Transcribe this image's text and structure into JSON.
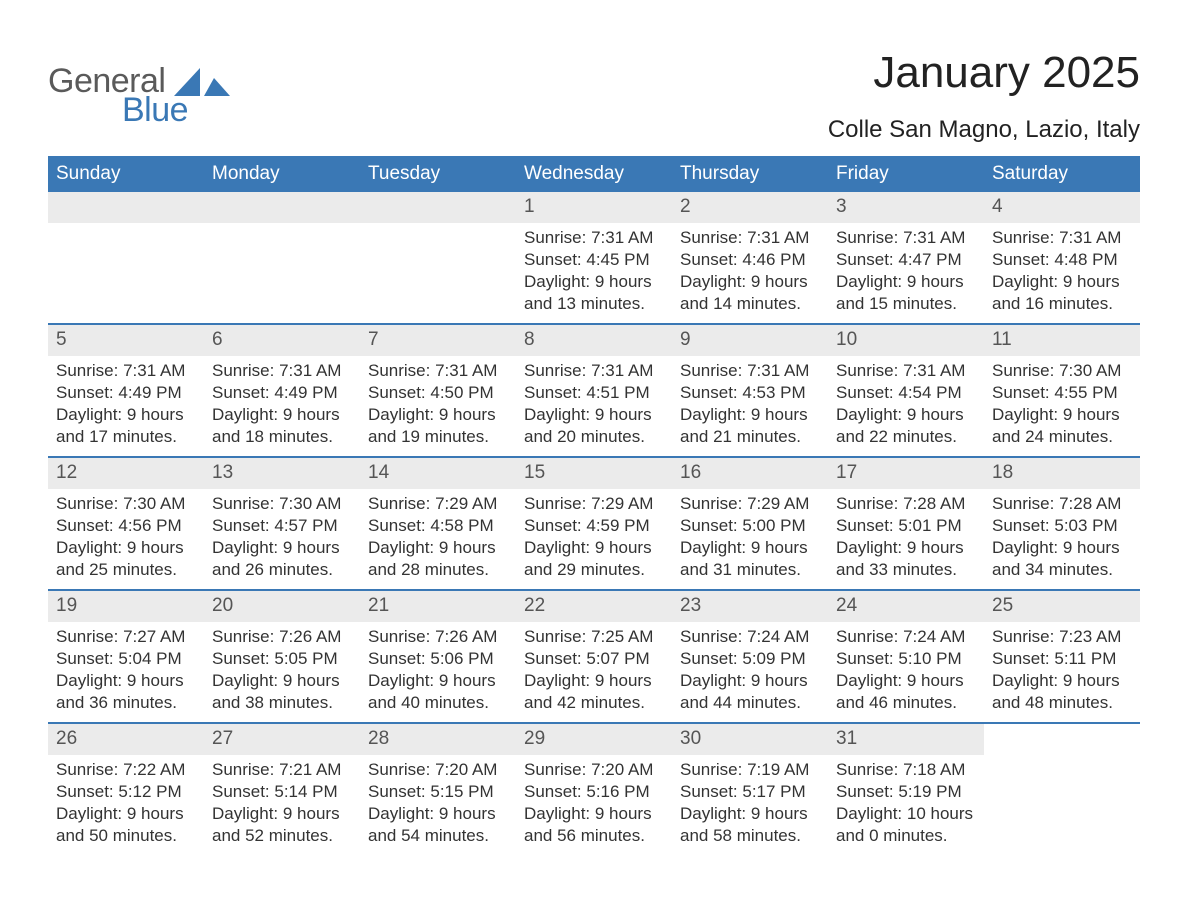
{
  "logo": {
    "text_main": "General",
    "text_sub": "Blue"
  },
  "title": "January 2025",
  "location": "Colle San Magno, Lazio, Italy",
  "colors": {
    "brand_blue": "#3a78b5",
    "header_text": "#ffffff",
    "daynum_bg": "#ebebeb",
    "body_text": "#333333",
    "logo_gray": "#5a5a5a"
  },
  "weekdays": [
    "Sunday",
    "Monday",
    "Tuesday",
    "Wednesday",
    "Thursday",
    "Friday",
    "Saturday"
  ],
  "weeks": [
    [
      null,
      null,
      null,
      {
        "n": "1",
        "sunrise": "7:31 AM",
        "sunset": "4:45 PM",
        "dl1": "9 hours",
        "dl2": "and 13 minutes."
      },
      {
        "n": "2",
        "sunrise": "7:31 AM",
        "sunset": "4:46 PM",
        "dl1": "9 hours",
        "dl2": "and 14 minutes."
      },
      {
        "n": "3",
        "sunrise": "7:31 AM",
        "sunset": "4:47 PM",
        "dl1": "9 hours",
        "dl2": "and 15 minutes."
      },
      {
        "n": "4",
        "sunrise": "7:31 AM",
        "sunset": "4:48 PM",
        "dl1": "9 hours",
        "dl2": "and 16 minutes."
      }
    ],
    [
      {
        "n": "5",
        "sunrise": "7:31 AM",
        "sunset": "4:49 PM",
        "dl1": "9 hours",
        "dl2": "and 17 minutes."
      },
      {
        "n": "6",
        "sunrise": "7:31 AM",
        "sunset": "4:49 PM",
        "dl1": "9 hours",
        "dl2": "and 18 minutes."
      },
      {
        "n": "7",
        "sunrise": "7:31 AM",
        "sunset": "4:50 PM",
        "dl1": "9 hours",
        "dl2": "and 19 minutes."
      },
      {
        "n": "8",
        "sunrise": "7:31 AM",
        "sunset": "4:51 PM",
        "dl1": "9 hours",
        "dl2": "and 20 minutes."
      },
      {
        "n": "9",
        "sunrise": "7:31 AM",
        "sunset": "4:53 PM",
        "dl1": "9 hours",
        "dl2": "and 21 minutes."
      },
      {
        "n": "10",
        "sunrise": "7:31 AM",
        "sunset": "4:54 PM",
        "dl1": "9 hours",
        "dl2": "and 22 minutes."
      },
      {
        "n": "11",
        "sunrise": "7:30 AM",
        "sunset": "4:55 PM",
        "dl1": "9 hours",
        "dl2": "and 24 minutes."
      }
    ],
    [
      {
        "n": "12",
        "sunrise": "7:30 AM",
        "sunset": "4:56 PM",
        "dl1": "9 hours",
        "dl2": "and 25 minutes."
      },
      {
        "n": "13",
        "sunrise": "7:30 AM",
        "sunset": "4:57 PM",
        "dl1": "9 hours",
        "dl2": "and 26 minutes."
      },
      {
        "n": "14",
        "sunrise": "7:29 AM",
        "sunset": "4:58 PM",
        "dl1": "9 hours",
        "dl2": "and 28 minutes."
      },
      {
        "n": "15",
        "sunrise": "7:29 AM",
        "sunset": "4:59 PM",
        "dl1": "9 hours",
        "dl2": "and 29 minutes."
      },
      {
        "n": "16",
        "sunrise": "7:29 AM",
        "sunset": "5:00 PM",
        "dl1": "9 hours",
        "dl2": "and 31 minutes."
      },
      {
        "n": "17",
        "sunrise": "7:28 AM",
        "sunset": "5:01 PM",
        "dl1": "9 hours",
        "dl2": "and 33 minutes."
      },
      {
        "n": "18",
        "sunrise": "7:28 AM",
        "sunset": "5:03 PM",
        "dl1": "9 hours",
        "dl2": "and 34 minutes."
      }
    ],
    [
      {
        "n": "19",
        "sunrise": "7:27 AM",
        "sunset": "5:04 PM",
        "dl1": "9 hours",
        "dl2": "and 36 minutes."
      },
      {
        "n": "20",
        "sunrise": "7:26 AM",
        "sunset": "5:05 PM",
        "dl1": "9 hours",
        "dl2": "and 38 minutes."
      },
      {
        "n": "21",
        "sunrise": "7:26 AM",
        "sunset": "5:06 PM",
        "dl1": "9 hours",
        "dl2": "and 40 minutes."
      },
      {
        "n": "22",
        "sunrise": "7:25 AM",
        "sunset": "5:07 PM",
        "dl1": "9 hours",
        "dl2": "and 42 minutes."
      },
      {
        "n": "23",
        "sunrise": "7:24 AM",
        "sunset": "5:09 PM",
        "dl1": "9 hours",
        "dl2": "and 44 minutes."
      },
      {
        "n": "24",
        "sunrise": "7:24 AM",
        "sunset": "5:10 PM",
        "dl1": "9 hours",
        "dl2": "and 46 minutes."
      },
      {
        "n": "25",
        "sunrise": "7:23 AM",
        "sunset": "5:11 PM",
        "dl1": "9 hours",
        "dl2": "and 48 minutes."
      }
    ],
    [
      {
        "n": "26",
        "sunrise": "7:22 AM",
        "sunset": "5:12 PM",
        "dl1": "9 hours",
        "dl2": "and 50 minutes."
      },
      {
        "n": "27",
        "sunrise": "7:21 AM",
        "sunset": "5:14 PM",
        "dl1": "9 hours",
        "dl2": "and 52 minutes."
      },
      {
        "n": "28",
        "sunrise": "7:20 AM",
        "sunset": "5:15 PM",
        "dl1": "9 hours",
        "dl2": "and 54 minutes."
      },
      {
        "n": "29",
        "sunrise": "7:20 AM",
        "sunset": "5:16 PM",
        "dl1": "9 hours",
        "dl2": "and 56 minutes."
      },
      {
        "n": "30",
        "sunrise": "7:19 AM",
        "sunset": "5:17 PM",
        "dl1": "9 hours",
        "dl2": "and 58 minutes."
      },
      {
        "n": "31",
        "sunrise": "7:18 AM",
        "sunset": "5:19 PM",
        "dl1": "10 hours",
        "dl2": "and 0 minutes."
      },
      null
    ]
  ],
  "labels": {
    "sunrise": "Sunrise: ",
    "sunset": "Sunset: ",
    "daylight": "Daylight: "
  }
}
